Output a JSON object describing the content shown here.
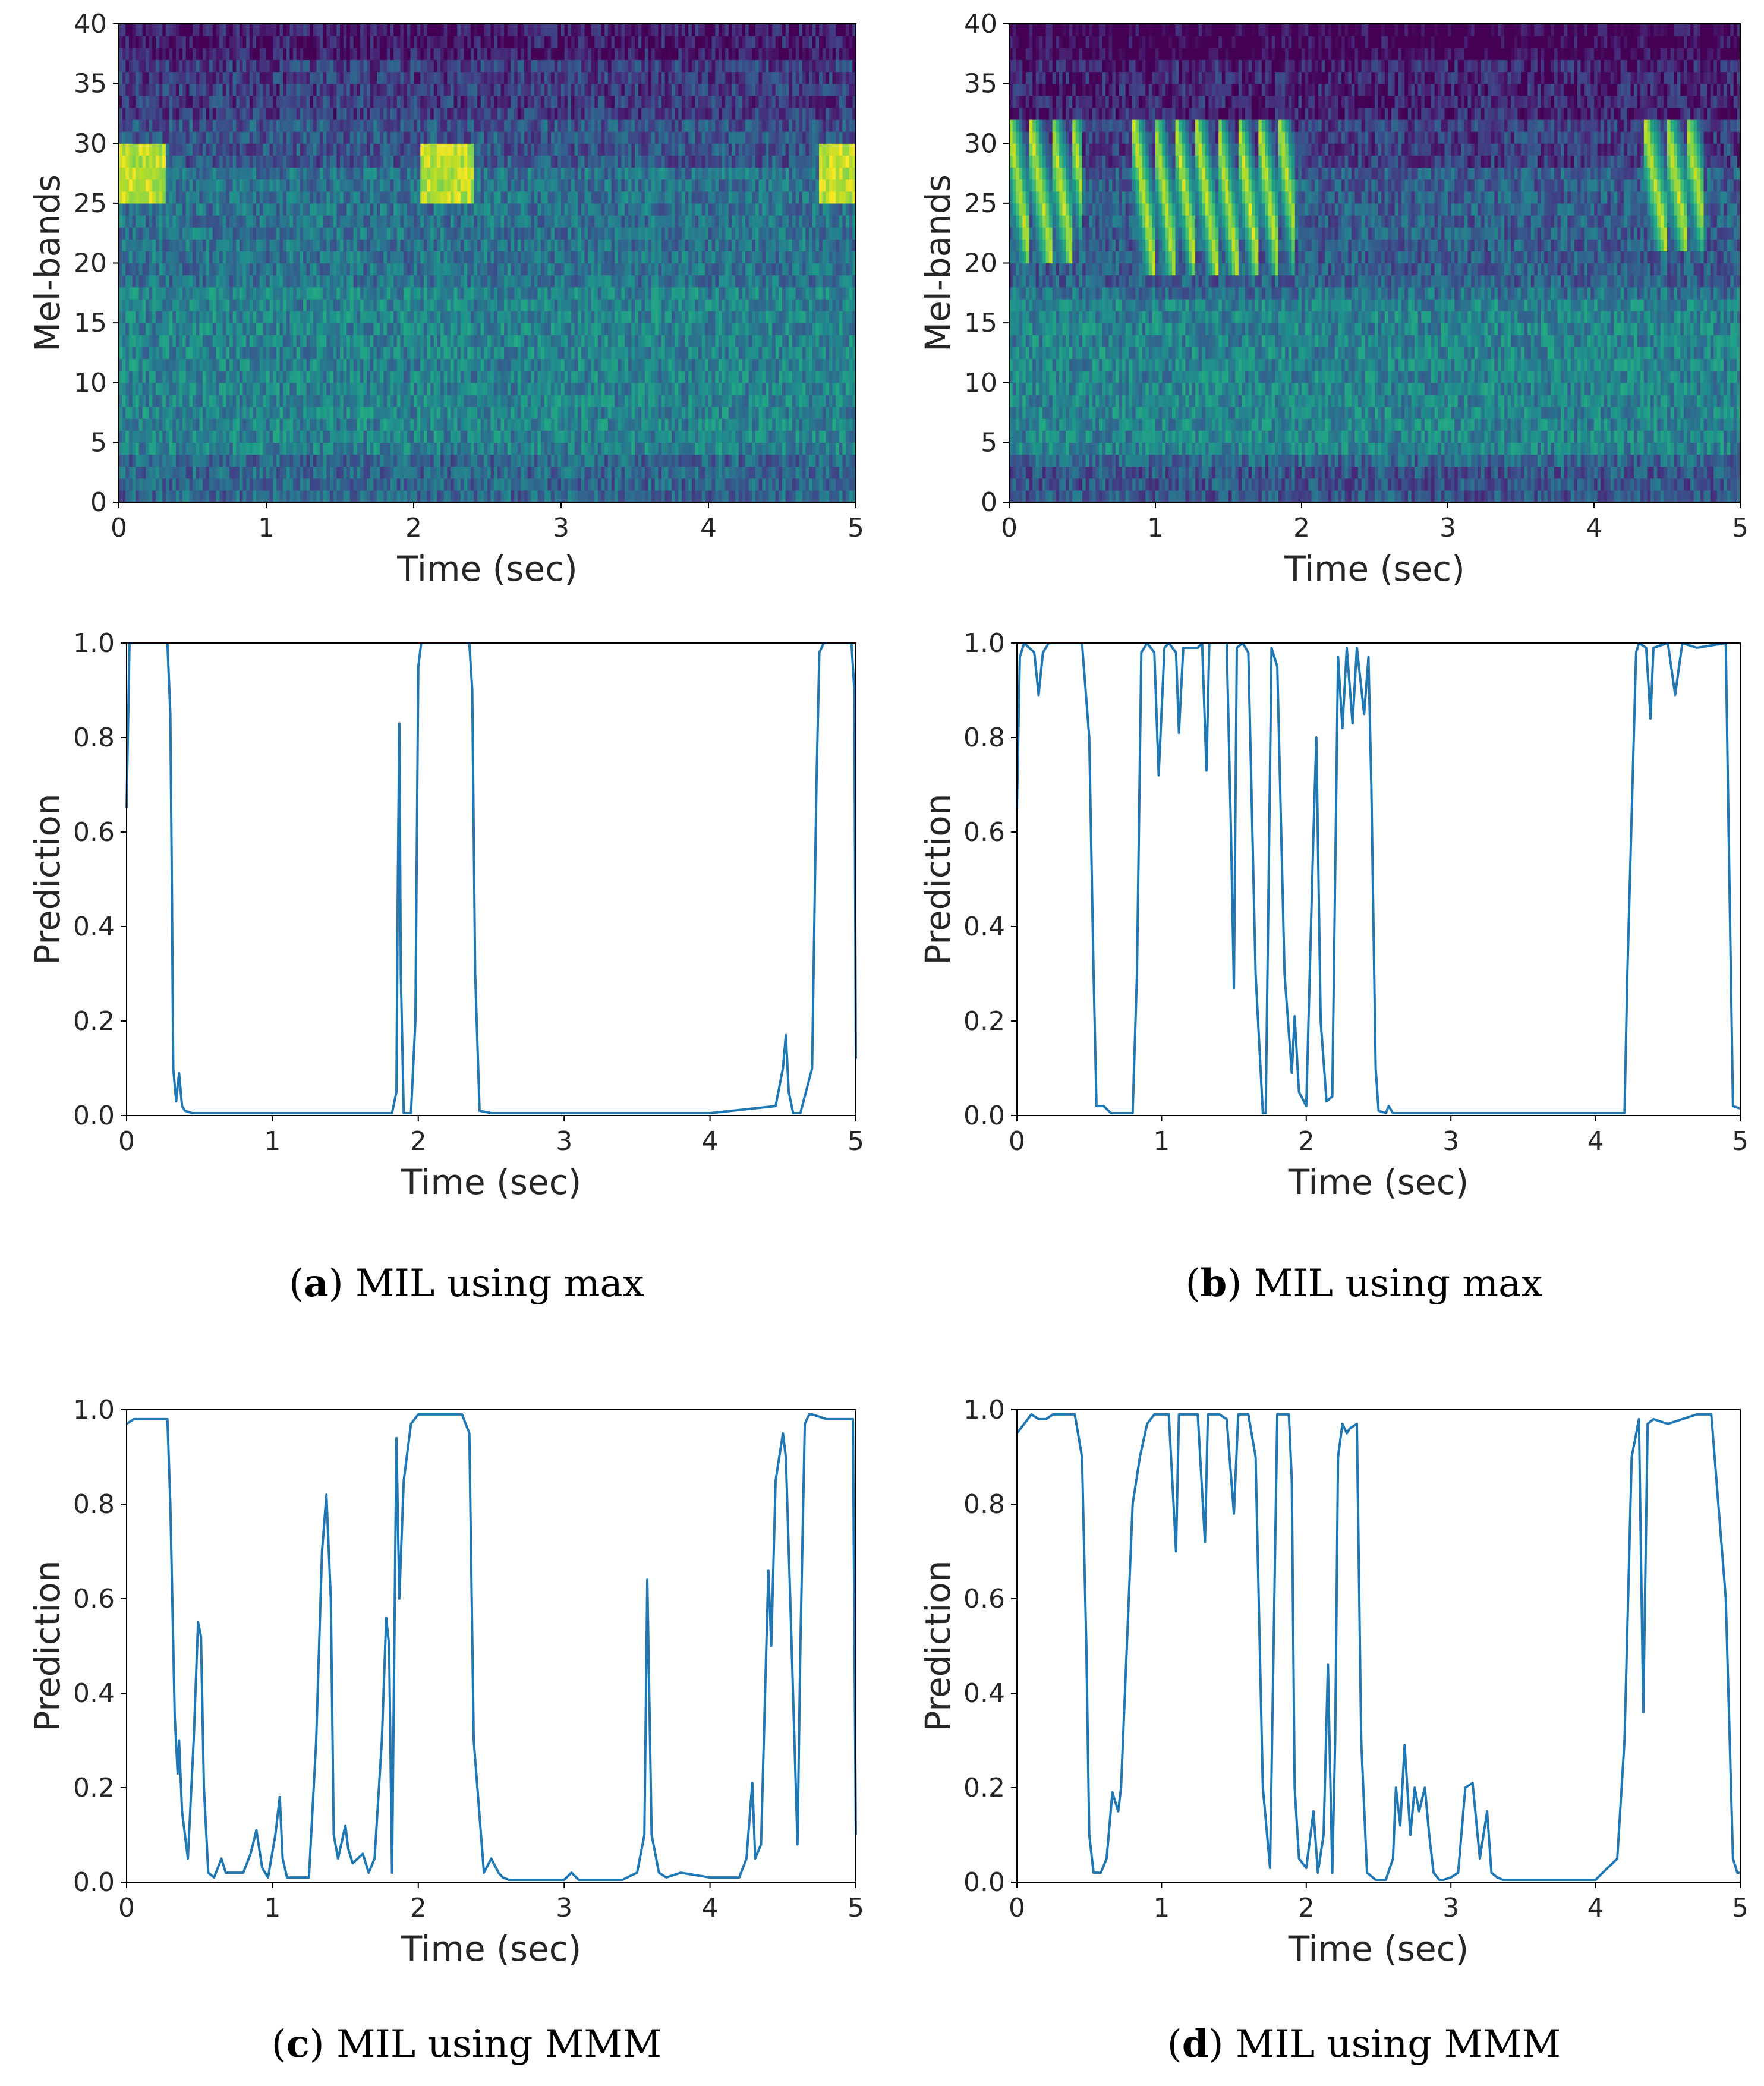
{
  "panels": {
    "a": {
      "caption_letter": "a",
      "caption_text": "MIL using max"
    },
    "b": {
      "caption_letter": "b",
      "caption_text": "MIL using max"
    },
    "c": {
      "caption_letter": "c",
      "caption_text": "MIL using MMM"
    },
    "d": {
      "caption_letter": "d",
      "caption_text": "MIL using MMM"
    }
  },
  "colors": {
    "line": "#1f77b4",
    "axis": "#000000",
    "tick_text": "#262626"
  },
  "chart_data": [
    {
      "id": "spec-a",
      "type": "heatmap",
      "colormap": "viridis",
      "xlabel": "Time (sec)",
      "ylabel": "Mel-bands",
      "xlim": [
        0,
        5
      ],
      "ylim": [
        0,
        40
      ],
      "xticks": [
        0,
        1,
        2,
        3,
        4,
        5
      ],
      "yticks": [
        0,
        5,
        10,
        15,
        20,
        25,
        30,
        35,
        40
      ],
      "events": [
        {
          "t0": 0.0,
          "t1": 0.32,
          "band_lo": 25,
          "band_hi": 29
        },
        {
          "t0": 2.05,
          "t1": 2.4,
          "band_lo": 25,
          "band_hi": 29
        },
        {
          "t0": 4.75,
          "t1": 5.0,
          "band_lo": 25,
          "band_hi": 29
        }
      ]
    },
    {
      "id": "spec-b",
      "type": "heatmap",
      "colormap": "viridis",
      "xlabel": "Time (sec)",
      "ylabel": "Mel-bands",
      "xlim": [
        0,
        5
      ],
      "ylim": [
        0,
        40
      ],
      "xticks": [
        0,
        1,
        2,
        3,
        4,
        5
      ],
      "yticks": [
        0,
        5,
        10,
        15,
        20,
        25,
        30,
        35,
        40
      ],
      "events": [
        {
          "t0": 0.0,
          "t1": 0.5,
          "band_lo": 20,
          "band_hi": 31
        },
        {
          "t0": 0.85,
          "t1": 1.95,
          "band_lo": 19,
          "band_hi": 31
        },
        {
          "t0": 4.35,
          "t1": 4.75,
          "band_lo": 21,
          "band_hi": 31
        }
      ]
    },
    {
      "id": "pred-a",
      "type": "line",
      "xlabel": "Time (sec)",
      "ylabel": "Prediction",
      "xlim": [
        0,
        5
      ],
      "ylim": [
        0,
        1
      ],
      "xticks": [
        0,
        1,
        2,
        3,
        4,
        5
      ],
      "yticks": [
        0.0,
        0.2,
        0.4,
        0.6,
        0.8,
        1.0
      ],
      "x": [
        0,
        0.02,
        0.05,
        0.28,
        0.3,
        0.31,
        0.32,
        0.34,
        0.36,
        0.38,
        0.4,
        0.45,
        0.5,
        1.0,
        1.5,
        1.82,
        1.85,
        1.86,
        1.87,
        1.88,
        1.9,
        1.95,
        1.98,
        2.0,
        2.02,
        2.05,
        2.35,
        2.37,
        2.39,
        2.42,
        2.5,
        3.0,
        4.0,
        4.45,
        4.5,
        4.52,
        4.54,
        4.57,
        4.62,
        4.7,
        4.73,
        4.75,
        4.78,
        4.97,
        4.99,
        5.0
      ],
      "y": [
        0.65,
        1.0,
        1.0,
        1.0,
        0.85,
        0.5,
        0.1,
        0.03,
        0.09,
        0.02,
        0.01,
        0.005,
        0.005,
        0.005,
        0.005,
        0.005,
        0.05,
        0.5,
        0.83,
        0.3,
        0.005,
        0.005,
        0.2,
        0.95,
        1.0,
        1.0,
        1.0,
        0.9,
        0.3,
        0.01,
        0.005,
        0.005,
        0.005,
        0.02,
        0.1,
        0.17,
        0.05,
        0.005,
        0.005,
        0.1,
        0.7,
        0.98,
        1.0,
        1.0,
        0.9,
        0.12
      ]
    },
    {
      "id": "pred-b",
      "type": "line",
      "xlabel": "Time (sec)",
      "ylabel": "Prediction",
      "xlim": [
        0,
        5
      ],
      "ylim": [
        0,
        1
      ],
      "xticks": [
        0,
        1,
        2,
        3,
        4,
        5
      ],
      "yticks": [
        0.0,
        0.2,
        0.4,
        0.6,
        0.8,
        1.0
      ],
      "x": [
        0,
        0.02,
        0.05,
        0.12,
        0.15,
        0.18,
        0.22,
        0.45,
        0.5,
        0.53,
        0.55,
        0.6,
        0.65,
        0.8,
        0.83,
        0.86,
        0.9,
        0.95,
        0.98,
        1.02,
        1.05,
        1.1,
        1.12,
        1.15,
        1.25,
        1.28,
        1.31,
        1.33,
        1.35,
        1.4,
        1.45,
        1.48,
        1.5,
        1.52,
        1.56,
        1.6,
        1.65,
        1.7,
        1.72,
        1.76,
        1.8,
        1.85,
        1.9,
        1.92,
        1.95,
        2.0,
        2.05,
        2.07,
        2.1,
        2.14,
        2.18,
        2.22,
        2.25,
        2.28,
        2.32,
        2.35,
        2.4,
        2.43,
        2.45,
        2.48,
        2.5,
        2.55,
        2.57,
        2.6,
        3.0,
        3.5,
        4.0,
        4.2,
        4.22,
        4.28,
        4.3,
        4.35,
        4.38,
        4.4,
        4.5,
        4.55,
        4.6,
        4.7,
        4.9,
        4.92,
        4.95,
        5.0
      ],
      "y": [
        0.65,
        0.97,
        1.0,
        0.98,
        0.89,
        0.98,
        1.0,
        1.0,
        0.8,
        0.3,
        0.02,
        0.02,
        0.005,
        0.005,
        0.3,
        0.98,
        1.0,
        0.98,
        0.72,
        0.99,
        1.0,
        0.98,
        0.81,
        0.99,
        0.99,
        1.0,
        0.73,
        1.0,
        1.0,
        1.0,
        1.0,
        0.6,
        0.27,
        0.99,
        1.0,
        0.98,
        0.3,
        0.005,
        0.005,
        0.99,
        0.95,
        0.3,
        0.09,
        0.21,
        0.05,
        0.02,
        0.6,
        0.8,
        0.2,
        0.03,
        0.04,
        0.97,
        0.82,
        0.99,
        0.83,
        0.99,
        0.85,
        0.97,
        0.7,
        0.1,
        0.01,
        0.005,
        0.02,
        0.005,
        0.005,
        0.005,
        0.005,
        0.005,
        0.3,
        0.98,
        1.0,
        0.99,
        0.84,
        0.99,
        1.0,
        0.89,
        1.0,
        0.99,
        1.0,
        0.6,
        0.02,
        0.015
      ]
    },
    {
      "id": "pred-c",
      "type": "line",
      "xlabel": "Time (sec)",
      "ylabel": "Prediction",
      "xlim": [
        0,
        5
      ],
      "ylim": [
        0,
        1
      ],
      "xticks": [
        0,
        1,
        2,
        3,
        4,
        5
      ],
      "yticks": [
        0.0,
        0.2,
        0.4,
        0.6,
        0.8,
        1.0
      ],
      "x": [
        0,
        0.05,
        0.28,
        0.3,
        0.33,
        0.35,
        0.36,
        0.38,
        0.42,
        0.46,
        0.49,
        0.51,
        0.53,
        0.56,
        0.6,
        0.65,
        0.68,
        0.72,
        0.8,
        0.85,
        0.89,
        0.93,
        0.97,
        1.02,
        1.05,
        1.07,
        1.1,
        1.15,
        1.25,
        1.3,
        1.34,
        1.37,
        1.4,
        1.42,
        1.45,
        1.5,
        1.52,
        1.55,
        1.62,
        1.66,
        1.7,
        1.75,
        1.78,
        1.8,
        1.82,
        1.85,
        1.87,
        1.9,
        1.95,
        2.0,
        2.05,
        2.3,
        2.35,
        2.38,
        2.45,
        2.5,
        2.55,
        2.58,
        2.62,
        2.7,
        3.0,
        3.05,
        3.1,
        3.4,
        3.5,
        3.55,
        3.57,
        3.6,
        3.65,
        3.7,
        3.8,
        4.0,
        4.2,
        4.25,
        4.29,
        4.31,
        4.35,
        4.4,
        4.42,
        4.45,
        4.5,
        4.52,
        4.55,
        4.6,
        4.62,
        4.65,
        4.68,
        4.7,
        4.8,
        4.98,
        5.0
      ],
      "y": [
        0.97,
        0.98,
        0.98,
        0.8,
        0.35,
        0.23,
        0.3,
        0.15,
        0.05,
        0.3,
        0.55,
        0.52,
        0.2,
        0.02,
        0.01,
        0.05,
        0.02,
        0.02,
        0.02,
        0.06,
        0.11,
        0.03,
        0.01,
        0.1,
        0.18,
        0.05,
        0.01,
        0.01,
        0.01,
        0.3,
        0.7,
        0.82,
        0.6,
        0.1,
        0.05,
        0.12,
        0.07,
        0.04,
        0.06,
        0.02,
        0.05,
        0.3,
        0.56,
        0.5,
        0.02,
        0.94,
        0.6,
        0.85,
        0.97,
        0.99,
        0.99,
        0.99,
        0.95,
        0.3,
        0.02,
        0.05,
        0.02,
        0.01,
        0.005,
        0.005,
        0.005,
        0.02,
        0.005,
        0.005,
        0.02,
        0.1,
        0.64,
        0.1,
        0.02,
        0.01,
        0.02,
        0.01,
        0.01,
        0.05,
        0.21,
        0.05,
        0.08,
        0.66,
        0.5,
        0.85,
        0.95,
        0.9,
        0.6,
        0.08,
        0.5,
        0.97,
        0.99,
        0.99,
        0.98,
        0.98,
        0.1
      ]
    },
    {
      "id": "pred-d",
      "type": "line",
      "xlabel": "Time (sec)",
      "ylabel": "Prediction",
      "xlim": [
        0,
        5
      ],
      "ylim": [
        0,
        1
      ],
      "xticks": [
        0,
        1,
        2,
        3,
        4,
        5
      ],
      "yticks": [
        0.0,
        0.2,
        0.4,
        0.6,
        0.8,
        1.0
      ],
      "x": [
        0,
        0.05,
        0.1,
        0.15,
        0.2,
        0.25,
        0.3,
        0.4,
        0.45,
        0.48,
        0.5,
        0.53,
        0.58,
        0.62,
        0.66,
        0.7,
        0.72,
        0.76,
        0.8,
        0.85,
        0.9,
        0.95,
        1.0,
        1.05,
        1.1,
        1.12,
        1.15,
        1.2,
        1.25,
        1.3,
        1.32,
        1.35,
        1.4,
        1.45,
        1.5,
        1.53,
        1.55,
        1.6,
        1.65,
        1.7,
        1.75,
        1.8,
        1.88,
        1.9,
        1.92,
        1.95,
        2.0,
        2.05,
        2.08,
        2.12,
        2.15,
        2.18,
        2.2,
        2.22,
        2.25,
        2.28,
        2.3,
        2.35,
        2.38,
        2.42,
        2.48,
        2.55,
        2.6,
        2.62,
        2.65,
        2.68,
        2.72,
        2.75,
        2.78,
        2.82,
        2.85,
        2.88,
        2.92,
        2.95,
        3.0,
        3.05,
        3.1,
        3.15,
        3.2,
        3.25,
        3.28,
        3.32,
        3.36,
        3.4,
        3.45,
        3.5,
        3.7,
        4.0,
        4.15,
        4.2,
        4.25,
        4.3,
        4.33,
        4.36,
        4.4,
        4.5,
        4.6,
        4.7,
        4.8,
        4.9,
        4.95,
        4.98,
        5.0
      ],
      "y": [
        0.95,
        0.97,
        0.99,
        0.98,
        0.98,
        0.99,
        0.99,
        0.99,
        0.9,
        0.5,
        0.1,
        0.02,
        0.02,
        0.05,
        0.19,
        0.15,
        0.2,
        0.5,
        0.8,
        0.9,
        0.97,
        0.99,
        0.99,
        0.99,
        0.7,
        0.99,
        0.99,
        0.99,
        0.99,
        0.72,
        0.99,
        0.99,
        0.99,
        0.98,
        0.78,
        0.99,
        0.99,
        0.99,
        0.9,
        0.2,
        0.03,
        0.99,
        0.99,
        0.85,
        0.2,
        0.05,
        0.03,
        0.15,
        0.02,
        0.1,
        0.46,
        0.02,
        0.3,
        0.9,
        0.97,
        0.95,
        0.96,
        0.97,
        0.3,
        0.02,
        0.005,
        0.005,
        0.05,
        0.2,
        0.12,
        0.29,
        0.1,
        0.2,
        0.15,
        0.2,
        0.1,
        0.02,
        0.005,
        0.005,
        0.01,
        0.02,
        0.2,
        0.21,
        0.05,
        0.15,
        0.02,
        0.01,
        0.005,
        0.005,
        0.005,
        0.005,
        0.005,
        0.005,
        0.05,
        0.3,
        0.9,
        0.98,
        0.36,
        0.97,
        0.98,
        0.97,
        0.98,
        0.99,
        0.99,
        0.6,
        0.05,
        0.02,
        0.02
      ]
    }
  ]
}
